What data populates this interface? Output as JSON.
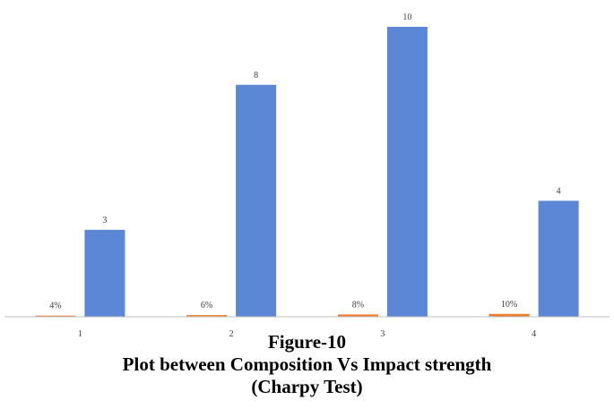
{
  "chart_data": {
    "type": "bar",
    "categories": [
      "1",
      "2",
      "3",
      "4"
    ],
    "series": [
      {
        "values": [
          0.04,
          0.06,
          0.08,
          0.1
        ],
        "data_labels": [
          "4%",
          "6%",
          "8%",
          "10%"
        ],
        "color": "#ED7D31"
      },
      {
        "values": [
          3,
          8,
          10,
          4
        ],
        "data_labels": [
          "3",
          "8",
          "10",
          "4"
        ],
        "color": "#5B87D6"
      }
    ],
    "ylim": [
      0,
      10
    ],
    "grid": false,
    "legend": "none"
  },
  "caption": {
    "figure_label": "Figure-10",
    "title_line1": "Plot between Composition Vs Impact strength",
    "title_line2": "(Charpy Test)"
  }
}
